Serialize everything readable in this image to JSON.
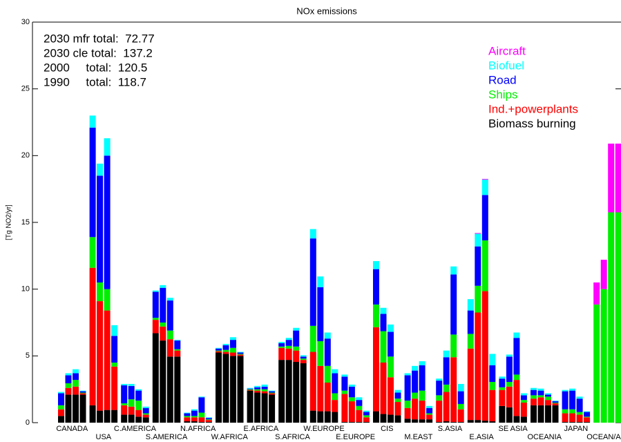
{
  "chart_data": {
    "type": "grouped-stacked-bar",
    "title": "NOx emissions",
    "y_label": "[Tg NO2/yr]",
    "annotations": [
      "2030 mfr total:  72.77",
      "2030 cle total:  137.2",
      "2000     total:  120.5",
      "1990     total:  118.7"
    ],
    "categories": [
      "CANADA",
      "USA",
      "C.AMERICA",
      "S.AMERICA",
      "N.AFRICA",
      "W.AFRICA",
      "E.AFRICA",
      "S.AFRICA",
      "W.EUROPE",
      "E.EUROPE",
      "CIS",
      "M.EAST",
      "S.ASIA",
      "E.ASIA",
      "SE ASIA",
      "OCEANIA",
      "JAPAN",
      "OCEAN/AIR"
    ],
    "ylim": [
      0,
      30
    ],
    "yticks": [
      0,
      5,
      10,
      15,
      20,
      25,
      30
    ],
    "series": [
      {
        "name": "Biomass burning",
        "color": "#000000",
        "values": [
          [
            0.5,
            2.1,
            2.1,
            2.1
          ],
          [
            1.3,
            0.9,
            0.95,
            0.95
          ],
          [
            0.6,
            0.6,
            0.45,
            0.4
          ],
          [
            6.7,
            6.15,
            4.95,
            4.95
          ],
          [
            0.1,
            0.1,
            0.05,
            0.05
          ],
          [
            5.25,
            5.15,
            5.0,
            5.0
          ],
          [
            2.4,
            2.25,
            2.2,
            2.1
          ],
          [
            4.7,
            4.7,
            4.55,
            4.45
          ],
          [
            0.9,
            0.85,
            0.85,
            0.8
          ],
          [
            0.05,
            0.05,
            0.05,
            0.05
          ],
          [
            0.85,
            0.65,
            0.6,
            0.55
          ],
          [
            0.3,
            0.25,
            0.25,
            0.25
          ],
          [
            0.05,
            0.1,
            0.05,
            0.05
          ],
          [
            0.2,
            0.2,
            0.15,
            0.1
          ],
          [
            1.25,
            1.15,
            0.5,
            0.45
          ],
          [
            1.3,
            1.3,
            1.3,
            1.3
          ],
          [
            0.05,
            0.05,
            0.05,
            0.05
          ],
          [
            0,
            0,
            0,
            0
          ]
        ]
      },
      {
        "name": "Ind.+powerplants",
        "color": "#ff0000",
        "values": [
          [
            0.5,
            0.5,
            0.6,
            0.1
          ],
          [
            10.3,
            8.2,
            7.45,
            3.25
          ],
          [
            0.7,
            0.6,
            0.5,
            0.2
          ],
          [
            1.0,
            1.05,
            1.3,
            0.45
          ],
          [
            0.3,
            0.3,
            0.35,
            0.15
          ],
          [
            0.1,
            0.15,
            0.25,
            0.1
          ],
          [
            0.05,
            0.15,
            0.15,
            0.1
          ],
          [
            0.9,
            0.85,
            0.85,
            0.25
          ],
          [
            4.4,
            3.4,
            2.15,
            0.9
          ],
          [
            2.1,
            1.55,
            0.9,
            0.35
          ],
          [
            6.3,
            3.85,
            2.8,
            1.0
          ],
          [
            0.8,
            1.55,
            1.4,
            0.35
          ],
          [
            1.6,
            2.2,
            4.85,
            0.95
          ],
          [
            5.35,
            8.05,
            9.7,
            2.35
          ],
          [
            1.2,
            1.55,
            2.7,
            1.05
          ],
          [
            0.5,
            0.6,
            0.4,
            0.15
          ],
          [
            0.65,
            0.65,
            0.55,
            0.35
          ],
          [
            0,
            0,
            0,
            0
          ]
        ]
      },
      {
        "name": "Ships",
        "color": "#00ee00",
        "values": [
          [
            0.3,
            0.35,
            0.5,
            0.05
          ],
          [
            2.3,
            1.4,
            1.6,
            0.3
          ],
          [
            0.15,
            0.55,
            0.7,
            0.1
          ],
          [
            0.15,
            0.3,
            0.65,
            0.1
          ],
          [
            0.1,
            0.1,
            0.35,
            0.05
          ],
          [
            0.05,
            0.15,
            0.35,
            0.05
          ],
          [
            0.05,
            0.1,
            0.15,
            0.05
          ],
          [
            0.1,
            0.2,
            0.3,
            0.1
          ],
          [
            1.95,
            1.85,
            1.25,
            0.5
          ],
          [
            0.25,
            0.3,
            0.3,
            0.15
          ],
          [
            1.7,
            2.35,
            1.55,
            0.25
          ],
          [
            0.55,
            0.45,
            0.75,
            0.1
          ],
          [
            0.4,
            0.55,
            1.7,
            0.4
          ],
          [
            1.1,
            2.0,
            3.8,
            0.6
          ],
          [
            0.2,
            0.35,
            0.4,
            0.2
          ],
          [
            0.25,
            0.15,
            0.25,
            0.05
          ],
          [
            0.3,
            0.3,
            0.2,
            0.05
          ],
          [
            8.85,
            10.0,
            15.75,
            15.75
          ]
        ]
      },
      {
        "name": "Road",
        "color": "#0000ff",
        "values": [
          [
            0.9,
            0.6,
            0.5,
            0.1
          ],
          [
            8.2,
            8.0,
            10.0,
            2.0
          ],
          [
            1.35,
            1.0,
            0.75,
            0.4
          ],
          [
            1.95,
            2.6,
            2.25,
            0.65
          ],
          [
            0.2,
            0.4,
            1.15,
            0.1
          ],
          [
            0.15,
            0.35,
            0.6,
            0.1
          ],
          [
            0.05,
            0.15,
            0.2,
            0.1
          ],
          [
            0.25,
            0.45,
            1.2,
            0.15
          ],
          [
            6.55,
            4.05,
            2.05,
            1.5
          ],
          [
            1.05,
            0.8,
            0.45,
            0.25
          ],
          [
            2.65,
            1.3,
            1.85,
            0.45
          ],
          [
            1.9,
            1.65,
            1.9,
            0.4
          ],
          [
            1.1,
            2.05,
            4.5,
            0.95
          ],
          [
            1.75,
            2.95,
            3.4,
            1.25
          ],
          [
            0.65,
            1.9,
            2.75,
            0.35
          ],
          [
            0.4,
            0.35,
            0.15,
            0.1
          ],
          [
            1.35,
            1.4,
            1.0,
            0.35
          ],
          [
            0,
            0,
            0,
            0
          ]
        ]
      },
      {
        "name": "Biofuel",
        "color": "#00ffff",
        "values": [
          [
            0.1,
            0.15,
            0.3,
            0.05
          ],
          [
            0.9,
            0.9,
            1.3,
            0.8
          ],
          [
            0.1,
            0.15,
            0.1,
            0.1
          ],
          [
            0.1,
            0.2,
            0.2,
            0.05
          ],
          [
            0.05,
            0.1,
            0.05,
            0.05
          ],
          [
            0.05,
            0.1,
            0.2,
            0.05
          ],
          [
            0.05,
            0.1,
            0.15,
            0.05
          ],
          [
            0.1,
            0.15,
            0.2,
            0.1
          ],
          [
            0.7,
            0.8,
            0.45,
            0.3
          ],
          [
            0.15,
            0.15,
            0.2,
            0.1
          ],
          [
            0.6,
            0.45,
            0.55,
            0.2
          ],
          [
            0.15,
            0.35,
            0.3,
            0.15
          ],
          [
            0.15,
            0.5,
            0.6,
            0.55
          ],
          [
            0.85,
            0.95,
            1.15,
            0.85
          ],
          [
            0.15,
            0.15,
            0.4,
            0.15
          ],
          [
            0.15,
            0.15,
            0.1,
            0.05
          ],
          [
            0.1,
            0.15,
            0.15,
            0.05
          ],
          [
            0,
            0,
            0,
            0
          ]
        ]
      },
      {
        "name": "Aircraft",
        "color": "#ff00ff",
        "values": [
          [
            0,
            0,
            0,
            0
          ],
          [
            0,
            0,
            0,
            0
          ],
          [
            0,
            0,
            0,
            0
          ],
          [
            0,
            0,
            0,
            0
          ],
          [
            0,
            0,
            0,
            0
          ],
          [
            0,
            0,
            0,
            0
          ],
          [
            0,
            0,
            0,
            0
          ],
          [
            0,
            0,
            0,
            0
          ],
          [
            0,
            0,
            0,
            0
          ],
          [
            0,
            0,
            0,
            0
          ],
          [
            0,
            0,
            0,
            0
          ],
          [
            0,
            0,
            0,
            0
          ],
          [
            0,
            0,
            0,
            0
          ],
          [
            0,
            0.05,
            0.05,
            0
          ],
          [
            0,
            0,
            0,
            0
          ],
          [
            0,
            0,
            0,
            0
          ],
          [
            0,
            0,
            0,
            0
          ],
          [
            1.65,
            2.2,
            5.15,
            5.15
          ]
        ]
      }
    ]
  }
}
